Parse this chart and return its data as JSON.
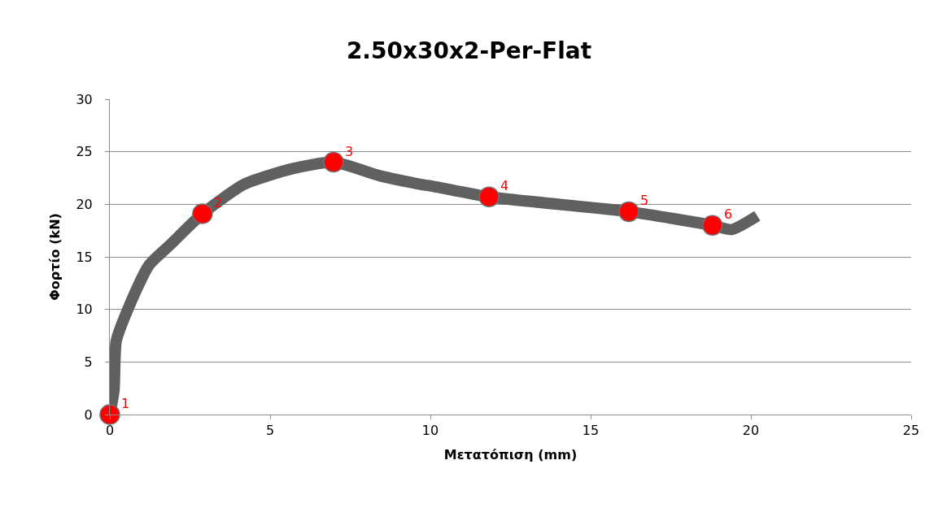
{
  "chart_data": {
    "type": "line",
    "title": "2.50x30x2-Per-Flat",
    "xlabel": "Μετατόπιση (mm)",
    "ylabel": "Φορτίο (kN)",
    "xlim": [
      0,
      25
    ],
    "xticks": [
      0,
      5,
      10,
      15,
      20,
      25
    ],
    "ylim": [
      0,
      30
    ],
    "yticks": [
      0,
      5,
      10,
      15,
      20,
      25,
      30
    ],
    "grid": "y",
    "series": [
      {
        "color": "#606060",
        "marker": "none",
        "line_style": "solid",
        "x": [
          0,
          0.13,
          0.2,
          0.56,
          1.22,
          1.9,
          2.89,
          4.19,
          5.71,
          6.98,
          8.43,
          9.7,
          10.1,
          11.83,
          16.19,
          18.8,
          19.4,
          20.2
        ],
        "values": [
          0,
          2.3,
          7.0,
          10.0,
          14.2,
          16.2,
          19.1,
          21.9,
          23.4,
          24.0,
          22.7,
          21.9,
          21.7,
          20.7,
          19.3,
          18.0,
          17.6,
          18.9
        ]
      },
      {
        "type": "scatter",
        "color": "#ff0000",
        "marker": "circle",
        "x": [
          0,
          2.89,
          6.98,
          11.83,
          16.19,
          18.8
        ],
        "values": [
          0,
          19.1,
          24.0,
          20.7,
          19.3,
          18.0
        ]
      }
    ],
    "annotations": [
      {
        "text": "1",
        "x": 0,
        "y": 0
      },
      {
        "text": "2",
        "x": 2.89,
        "y": 19.1
      },
      {
        "text": "3",
        "x": 6.98,
        "y": 24.0
      },
      {
        "text": "4",
        "x": 11.83,
        "y": 20.7
      },
      {
        "text": "5",
        "x": 16.19,
        "y": 19.3
      },
      {
        "text": "6",
        "x": 18.8,
        "y": 18.0
      }
    ]
  }
}
